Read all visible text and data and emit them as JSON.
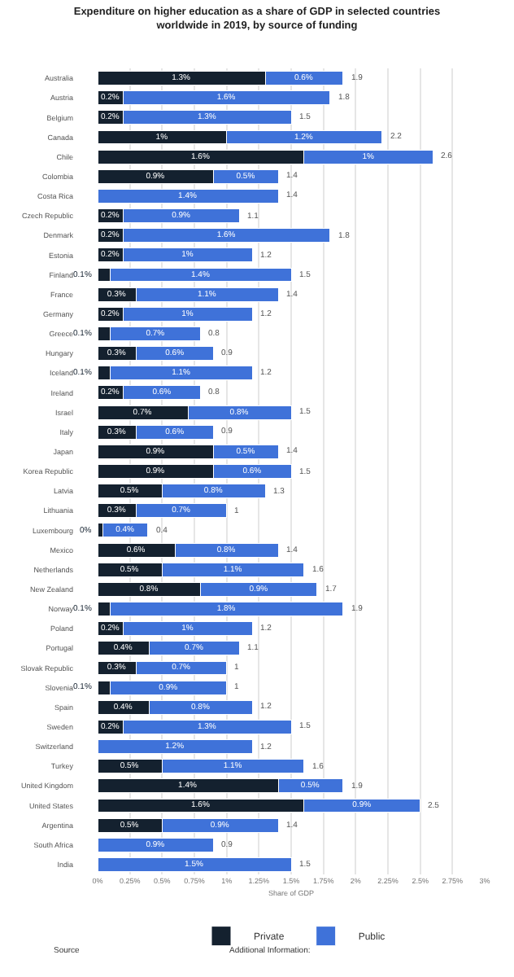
{
  "chart_data": {
    "type": "bar",
    "orientation": "horizontal",
    "stacked": true,
    "title": "Expenditure on higher education as a share of GDP in selected countries worldwide in 2019, by source of funding",
    "xlabel": "Share of GDP",
    "categories": [
      "Australia",
      "Austria",
      "Belgium",
      "Canada",
      "Chile",
      "Colombia",
      "Costa Rica",
      "Czech Republic",
      "Denmark",
      "Estonia",
      "Finland",
      "France",
      "Germany",
      "Greece",
      "Hungary",
      "Iceland",
      "Ireland",
      "Israel",
      "Italy",
      "Japan",
      "Korea Republic",
      "Latvia",
      "Lithuania",
      "Luxembourg",
      "Mexico",
      "Netherlands",
      "New Zealand",
      "Norway",
      "Poland",
      "Portugal",
      "Slovak Republic",
      "Slovenia",
      "Spain",
      "Sweden",
      "Switzerland",
      "Turkey",
      "United Kingdom",
      "United States",
      "Argentina",
      "South Africa",
      "India"
    ],
    "series": [
      {
        "name": "Private",
        "color": "#14212f",
        "values": [
          1.3,
          0.2,
          0.2,
          1,
          1.6,
          0.9,
          null,
          0.2,
          0.2,
          0.2,
          0.1,
          0.3,
          0.2,
          0.1,
          0.3,
          0.1,
          0.2,
          0.7,
          0.3,
          0.9,
          0.9,
          0.5,
          0.3,
          0.04,
          0.6,
          0.5,
          0.8,
          0.1,
          0.2,
          0.4,
          0.3,
          0.1,
          0.4,
          0.2,
          null,
          0.5,
          1.4,
          1.6,
          0.5,
          null,
          null
        ],
        "value_labels": [
          "1.3%",
          "0.2%",
          "0.2%",
          "1%",
          "1.6%",
          "0.9%",
          null,
          "0.2%",
          "0.2%",
          "0.2%",
          "0.1%",
          "0.3%",
          "0.2%",
          "0.1%",
          "0.3%",
          "0.1%",
          "0.2%",
          "0.7%",
          "0.3%",
          "0.9%",
          "0.9%",
          "0.5%",
          "0.3%",
          "0%",
          "0.6%",
          "0.5%",
          "0.8%",
          "0.1%",
          "0.2%",
          "0.4%",
          "0.3%",
          "0.1%",
          "0.4%",
          "0.2%",
          null,
          "0.5%",
          "1.4%",
          "1.6%",
          "0.5%",
          null,
          null
        ]
      },
      {
        "name": "Public",
        "color": "#3f72d9",
        "values": [
          0.6,
          1.6,
          1.3,
          1.2,
          1,
          0.5,
          1.4,
          0.9,
          1.6,
          1,
          1.4,
          1.1,
          1,
          0.7,
          0.6,
          1.1,
          0.6,
          0.8,
          0.6,
          0.5,
          0.6,
          0.8,
          0.7,
          0.35,
          0.8,
          1.1,
          0.9,
          1.8,
          1,
          0.7,
          0.7,
          0.9,
          0.8,
          1.3,
          1.2,
          1.1,
          0.5,
          0.9,
          0.9,
          0.9,
          1.5
        ],
        "value_labels": [
          "0.6%",
          "1.6%",
          "1.3%",
          "1.2%",
          "1%",
          "0.5%",
          "1.4%",
          "0.9%",
          "1.6%",
          "1%",
          "1.4%",
          "1.1%",
          "1%",
          "0.7%",
          "0.6%",
          "1.1%",
          "0.6%",
          "0.8%",
          "0.6%",
          "0.5%",
          "0.6%",
          "0.8%",
          "0.7%",
          "0.4%",
          "0.8%",
          "1.1%",
          "0.9%",
          "1.8%",
          "1%",
          "0.7%",
          "0.7%",
          "0.9%",
          "0.8%",
          "1.3%",
          "1.2%",
          "1.1%",
          "0.5%",
          "0.9%",
          "0.9%",
          "0.9%",
          "1.5%"
        ]
      }
    ],
    "totals": [
      "1.9",
      "1.8",
      "1.5",
      "2.2",
      "2.6",
      "1.4",
      "1.4",
      "1.1",
      "1.8",
      "1.2",
      "1.5",
      "1.4",
      "1.2",
      "0.8",
      "0.9",
      "1.2",
      "0.8",
      "1.5",
      "0.9",
      "1.4",
      "1.5",
      "1.3",
      "1",
      "0.4",
      "1.4",
      "1.6",
      "1.7",
      "1.9",
      "1.2",
      "1.1",
      "1",
      "1",
      "1.2",
      "1.5",
      "1.2",
      "1.6",
      "1.9",
      "2.5",
      "1.4",
      "0.9",
      "1.5"
    ],
    "xlim": [
      0,
      3
    ],
    "xticks": [
      {
        "value": 0,
        "label": "0%"
      },
      {
        "value": 0.25,
        "label": "0.25%"
      },
      {
        "value": 0.5,
        "label": "0.5%"
      },
      {
        "value": 0.75,
        "label": "0.75%"
      },
      {
        "value": 1,
        "label": "1%"
      },
      {
        "value": 1.25,
        "label": "1.25%"
      },
      {
        "value": 1.5,
        "label": "1.5%"
      },
      {
        "value": 1.75,
        "label": "1.75%"
      },
      {
        "value": 2,
        "label": "2%"
      },
      {
        "value": 2.25,
        "label": "2.25%"
      },
      {
        "value": 2.5,
        "label": "2.5%"
      },
      {
        "value": 2.75,
        "label": "2.75%"
      },
      {
        "value": 3,
        "label": "3%"
      }
    ],
    "grid": "x",
    "legend": "bottom",
    "annotations": [
      "Source",
      "Additional Information:"
    ]
  }
}
